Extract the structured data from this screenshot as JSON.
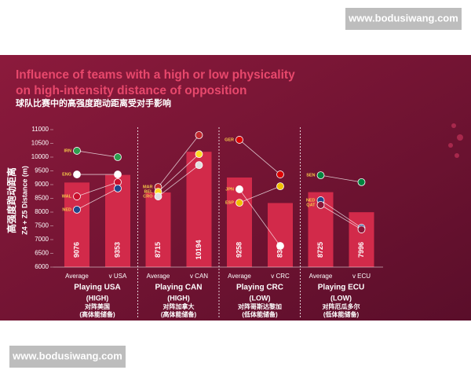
{
  "watermarks": [
    "www.bodusiwang.com",
    "www.bodusiwang.com"
  ],
  "chart_data": {
    "type": "bar",
    "title": [
      "Influence of teams with a high or low physicality",
      "on high-intensity distance of opposition"
    ],
    "subtitle": "球队比赛中的高强度跑动距离受对手影响",
    "y_label": "Z4 + Z5 Distance (m)",
    "y_label_zh": "高强度跑动距离",
    "categories": [
      "Average",
      "v USA",
      "Average",
      "v CAN",
      "Average",
      "v CRC",
      "Average",
      "v ECU"
    ],
    "values": [
      9076,
      9353,
      8715,
      10194,
      9258,
      8330,
      8725,
      7996
    ],
    "color": "#d22a4a",
    "ylim": [
      6000,
      11000
    ],
    "yticks": [
      6000,
      6500,
      7000,
      7500,
      8000,
      8500,
      9000,
      9500,
      10000,
      10500,
      11000
    ],
    "groups": [
      {
        "name": "Playing USA",
        "level": "(HIGH)",
        "name_zh": "对阵美国",
        "level_zh": "(高体能储备)",
        "teams": [
          {
            "code": "IRN",
            "color": "#2e9e4f",
            "values": [
              10230,
              10000
            ]
          },
          {
            "code": "ENG",
            "color": "#ffffff",
            "values": [
              9370,
              9370
            ]
          },
          {
            "code": "WAL",
            "color": "#c8102e",
            "values": [
              8570,
              9090
            ]
          },
          {
            "code": "NED",
            "color": "#21468b",
            "values": [
              8090,
              8860
            ]
          }
        ]
      },
      {
        "name": "Playing CAN",
        "level": "(HIGH)",
        "name_zh": "对阵加拿大",
        "level_zh": "(高体能储备)",
        "teams": [
          {
            "code": "MAR",
            "color": "#c1272d",
            "values": [
              8910,
              10800
            ]
          },
          {
            "code": "BEL",
            "color": "#fdda24",
            "values": [
              8740,
              10110
            ]
          },
          {
            "code": "CRO",
            "color": "#e0e0e0",
            "values": [
              8570,
              9710
            ]
          }
        ]
      },
      {
        "name": "Playing CRC",
        "level": "(LOW)",
        "name_zh": "对阵哥斯达黎加",
        "level_zh": "(低体能储备)",
        "teams": [
          {
            "code": "GER",
            "color": "#dd0000",
            "values": [
              10630,
              9370
            ]
          },
          {
            "code": "JPN",
            "color": "#ffffff",
            "values": [
              8830,
              6770
            ]
          },
          {
            "code": "ESP",
            "color": "#f1bf00",
            "values": [
              8340,
              8940
            ]
          }
        ]
      },
      {
        "name": "Playing ECU",
        "level": "(LOW)",
        "name_zh": "对阵厄瓜多尔",
        "level_zh": "(低体能储备)",
        "teams": [
          {
            "code": "SEN",
            "color": "#00853f",
            "values": [
              9340,
              9090
            ]
          },
          {
            "code": "NED",
            "color": "#21468b",
            "values": [
              8430,
              7430
            ]
          },
          {
            "code": "QAT",
            "color": "#8a1538",
            "values": [
              8260,
              7370
            ]
          }
        ]
      }
    ]
  }
}
